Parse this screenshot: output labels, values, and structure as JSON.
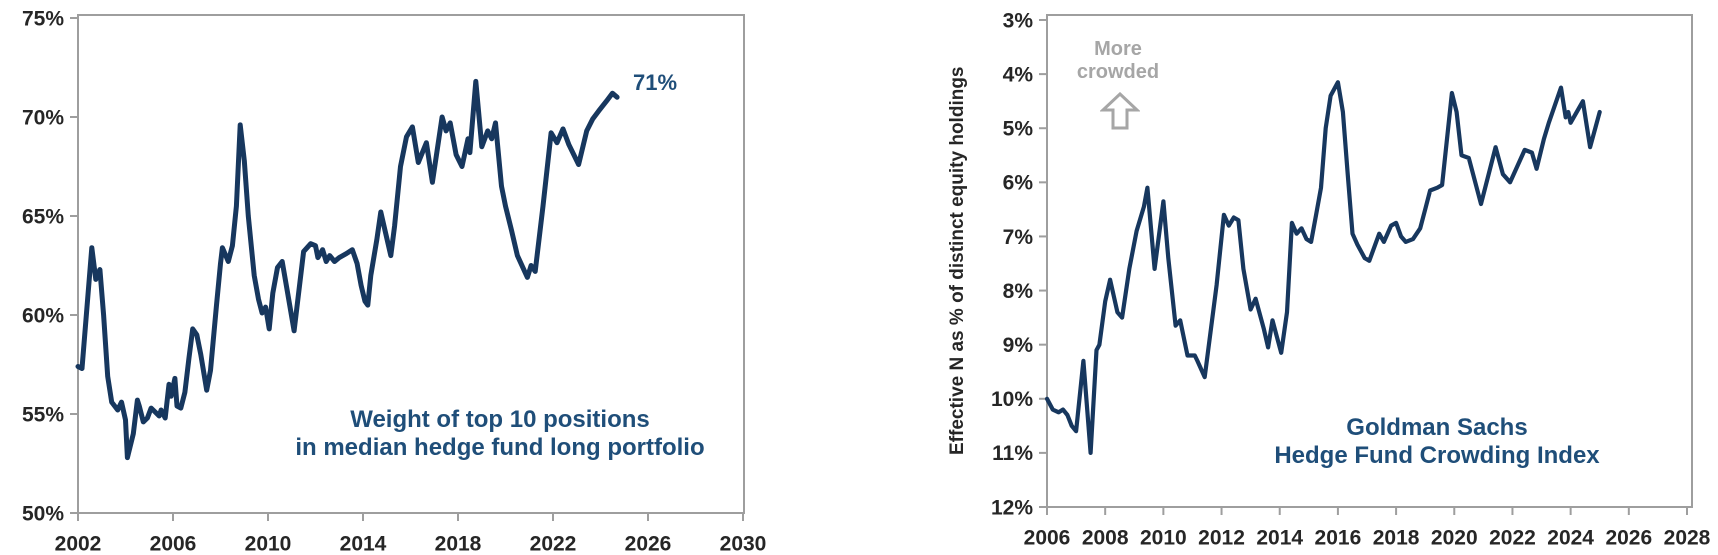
{
  "page": {
    "background": "#FFFFFF"
  },
  "chart_data": [
    {
      "id": "hedge-fund-top10-weight",
      "type": "line",
      "title": "Weight of top 10 positions\nin median hedge fund long portfolio",
      "end_label": "71%",
      "x_tick_labels": [
        "2002",
        "2006",
        "2010",
        "2014",
        "2018",
        "2022",
        "2026",
        "2030"
      ],
      "y_tick_labels": [
        "75%",
        "70%",
        "65%",
        "60%",
        "55%",
        "50%"
      ],
      "xlim": [
        2002,
        2030
      ],
      "ylim": [
        50,
        75
      ],
      "y_axis_inverted": false,
      "grid": false,
      "legend": "none",
      "colors": {
        "line": "#17375E",
        "title": "#1F4E79",
        "ticks": "#262626",
        "axis": "#9E9E9E"
      },
      "series": [
        {
          "name": "Weight of top 10 positions in median hedge fund long portfolio (%)",
          "points": [
            [
              2002.0,
              57.4
            ],
            [
              2002.17,
              57.3
            ],
            [
              2002.58,
              63.4
            ],
            [
              2002.75,
              61.8
            ],
            [
              2002.92,
              62.3
            ],
            [
              2003.08,
              60.0
            ],
            [
              2003.25,
              56.9
            ],
            [
              2003.42,
              55.6
            ],
            [
              2003.67,
              55.2
            ],
            [
              2003.83,
              55.6
            ],
            [
              2004.0,
              54.7
            ],
            [
              2004.08,
              52.8
            ],
            [
              2004.33,
              54.0
            ],
            [
              2004.5,
              55.7
            ],
            [
              2004.58,
              55.4
            ],
            [
              2004.75,
              54.6
            ],
            [
              2004.92,
              54.8
            ],
            [
              2005.08,
              55.3
            ],
            [
              2005.25,
              55.1
            ],
            [
              2005.42,
              54.9
            ],
            [
              2005.5,
              55.2
            ],
            [
              2005.67,
              54.8
            ],
            [
              2005.83,
              56.5
            ],
            [
              2005.92,
              55.9
            ],
            [
              2006.08,
              56.8
            ],
            [
              2006.17,
              55.4
            ],
            [
              2006.33,
              55.3
            ],
            [
              2006.5,
              56.1
            ],
            [
              2006.67,
              57.8
            ],
            [
              2006.83,
              59.3
            ],
            [
              2007.0,
              59.0
            ],
            [
              2007.17,
              58.0
            ],
            [
              2007.42,
              56.2
            ],
            [
              2007.58,
              57.2
            ],
            [
              2007.83,
              60.5
            ],
            [
              2008.0,
              62.6
            ],
            [
              2008.08,
              63.4
            ],
            [
              2008.33,
              62.7
            ],
            [
              2008.5,
              63.5
            ],
            [
              2008.67,
              65.5
            ],
            [
              2008.83,
              69.6
            ],
            [
              2009.0,
              67.8
            ],
            [
              2009.17,
              65.0
            ],
            [
              2009.42,
              62.0
            ],
            [
              2009.6,
              60.8
            ],
            [
              2009.75,
              60.1
            ],
            [
              2009.9,
              60.4
            ],
            [
              2010.05,
              59.3
            ],
            [
              2010.2,
              61.1
            ],
            [
              2010.4,
              62.4
            ],
            [
              2010.6,
              62.7
            ],
            [
              2010.8,
              61.3
            ],
            [
              2011.1,
              59.2
            ],
            [
              2011.5,
              63.2
            ],
            [
              2011.8,
              63.6
            ],
            [
              2012.0,
              63.5
            ],
            [
              2012.1,
              62.9
            ],
            [
              2012.3,
              63.3
            ],
            [
              2012.45,
              62.7
            ],
            [
              2012.6,
              63.0
            ],
            [
              2012.8,
              62.7
            ],
            [
              2013.0,
              62.9
            ],
            [
              2013.3,
              63.1
            ],
            [
              2013.55,
              63.3
            ],
            [
              2013.75,
              62.6
            ],
            [
              2013.92,
              61.5
            ],
            [
              2014.08,
              60.7
            ],
            [
              2014.2,
              60.5
            ],
            [
              2014.33,
              62.0
            ],
            [
              2014.58,
              63.8
            ],
            [
              2014.75,
              65.2
            ],
            [
              2014.92,
              64.3
            ],
            [
              2015.17,
              63.0
            ],
            [
              2015.33,
              64.5
            ],
            [
              2015.58,
              67.5
            ],
            [
              2015.83,
              69.0
            ],
            [
              2016.08,
              69.5
            ],
            [
              2016.33,
              67.7
            ],
            [
              2016.67,
              68.7
            ],
            [
              2016.92,
              66.7
            ],
            [
              2017.33,
              70.0
            ],
            [
              2017.5,
              69.3
            ],
            [
              2017.67,
              69.7
            ],
            [
              2017.92,
              68.1
            ],
            [
              2018.17,
              67.5
            ],
            [
              2018.42,
              68.9
            ],
            [
              2018.5,
              68.2
            ],
            [
              2018.75,
              71.8
            ],
            [
              2019.0,
              68.5
            ],
            [
              2019.25,
              69.3
            ],
            [
              2019.42,
              68.9
            ],
            [
              2019.58,
              69.7
            ],
            [
              2019.83,
              66.5
            ],
            [
              2020.0,
              65.5
            ],
            [
              2020.25,
              64.3
            ],
            [
              2020.5,
              63.0
            ],
            [
              2020.92,
              61.9
            ],
            [
              2021.08,
              62.5
            ],
            [
              2021.25,
              62.2
            ],
            [
              2021.58,
              65.5
            ],
            [
              2021.92,
              69.2
            ],
            [
              2022.17,
              68.7
            ],
            [
              2022.42,
              69.4
            ],
            [
              2022.67,
              68.6
            ],
            [
              2023.08,
              67.6
            ],
            [
              2023.42,
              69.3
            ],
            [
              2023.67,
              69.9
            ],
            [
              2023.92,
              70.3
            ],
            [
              2024.25,
              70.8
            ],
            [
              2024.5,
              71.2
            ],
            [
              2024.7,
              71.0
            ]
          ]
        }
      ]
    },
    {
      "id": "gs-hedge-fund-crowding-index",
      "type": "line",
      "title": "Goldman Sachs\nHedge Fund Crowding Index",
      "ylabel": "Effective N as % of distinct equity holdings",
      "annotation": "More crowded",
      "x_tick_labels": [
        "2006",
        "2008",
        "2010",
        "2012",
        "2014",
        "2016",
        "2018",
        "2020",
        "2022",
        "2024",
        "2026",
        "2028"
      ],
      "y_tick_labels": [
        "3%",
        "4%",
        "5%",
        "6%",
        "7%",
        "8%",
        "9%",
        "10%",
        "11%",
        "12%"
      ],
      "xlim": [
        2006,
        2028
      ],
      "ylim": [
        3,
        12
      ],
      "y_axis_inverted": true,
      "grid": false,
      "legend": "none",
      "colors": {
        "line": "#17375E",
        "title": "#1F4E79",
        "ticks": "#262626",
        "axis": "#9E9E9E",
        "annotation": "#A6A6A6"
      },
      "series": [
        {
          "name": "Goldman Sachs Hedge Fund Crowding Index — Effective N as % of distinct equity holdings",
          "points": [
            [
              2006.0,
              10.0
            ],
            [
              2006.2,
              10.2
            ],
            [
              2006.4,
              10.25
            ],
            [
              2006.55,
              10.2
            ],
            [
              2006.7,
              10.3
            ],
            [
              2006.85,
              10.5
            ],
            [
              2007.0,
              10.6
            ],
            [
              2007.25,
              9.3
            ],
            [
              2007.5,
              11.0
            ],
            [
              2007.7,
              9.1
            ],
            [
              2007.8,
              9.0
            ],
            [
              2008.0,
              8.2
            ],
            [
              2008.17,
              7.8
            ],
            [
              2008.42,
              8.4
            ],
            [
              2008.58,
              8.5
            ],
            [
              2008.83,
              7.6
            ],
            [
              2009.08,
              6.9
            ],
            [
              2009.33,
              6.45
            ],
            [
              2009.45,
              6.1
            ],
            [
              2009.7,
              7.6
            ],
            [
              2010.0,
              6.35
            ],
            [
              2010.17,
              7.4
            ],
            [
              2010.42,
              8.65
            ],
            [
              2010.58,
              8.55
            ],
            [
              2010.83,
              9.2
            ],
            [
              2011.08,
              9.2
            ],
            [
              2011.17,
              9.3
            ],
            [
              2011.42,
              9.6
            ],
            [
              2011.83,
              7.9
            ],
            [
              2012.08,
              6.6
            ],
            [
              2012.25,
              6.8
            ],
            [
              2012.42,
              6.65
            ],
            [
              2012.58,
              6.7
            ],
            [
              2012.75,
              7.6
            ],
            [
              2013.0,
              8.35
            ],
            [
              2013.17,
              8.15
            ],
            [
              2013.45,
              8.7
            ],
            [
              2013.6,
              9.05
            ],
            [
              2013.75,
              8.55
            ],
            [
              2013.9,
              8.85
            ],
            [
              2014.05,
              9.15
            ],
            [
              2014.25,
              8.4
            ],
            [
              2014.42,
              6.75
            ],
            [
              2014.58,
              6.95
            ],
            [
              2014.75,
              6.85
            ],
            [
              2014.92,
              7.05
            ],
            [
              2015.08,
              7.1
            ],
            [
              2015.25,
              6.6
            ],
            [
              2015.42,
              6.1
            ],
            [
              2015.58,
              5.0
            ],
            [
              2015.75,
              4.4
            ],
            [
              2016.0,
              4.15
            ],
            [
              2016.17,
              4.7
            ],
            [
              2016.33,
              5.8
            ],
            [
              2016.5,
              6.95
            ],
            [
              2016.67,
              7.15
            ],
            [
              2016.92,
              7.4
            ],
            [
              2017.08,
              7.45
            ],
            [
              2017.42,
              6.95
            ],
            [
              2017.58,
              7.1
            ],
            [
              2017.83,
              6.8
            ],
            [
              2018.0,
              6.75
            ],
            [
              2018.17,
              7.0
            ],
            [
              2018.33,
              7.1
            ],
            [
              2018.58,
              7.05
            ],
            [
              2018.83,
              6.85
            ],
            [
              2019.0,
              6.5
            ],
            [
              2019.17,
              6.15
            ],
            [
              2019.42,
              6.1
            ],
            [
              2019.58,
              6.05
            ],
            [
              2019.92,
              4.35
            ],
            [
              2020.08,
              4.7
            ],
            [
              2020.25,
              5.5
            ],
            [
              2020.5,
              5.55
            ],
            [
              2020.92,
              6.4
            ],
            [
              2021.42,
              5.35
            ],
            [
              2021.67,
              5.85
            ],
            [
              2021.92,
              6.0
            ],
            [
              2022.42,
              5.4
            ],
            [
              2022.67,
              5.45
            ],
            [
              2022.83,
              5.75
            ],
            [
              2023.08,
              5.2
            ],
            [
              2023.25,
              4.9
            ],
            [
              2023.67,
              4.25
            ],
            [
              2023.83,
              4.8
            ],
            [
              2023.92,
              4.7
            ],
            [
              2024.0,
              4.9
            ],
            [
              2024.42,
              4.5
            ],
            [
              2024.67,
              5.35
            ],
            [
              2025.0,
              4.7
            ]
          ]
        }
      ]
    }
  ]
}
